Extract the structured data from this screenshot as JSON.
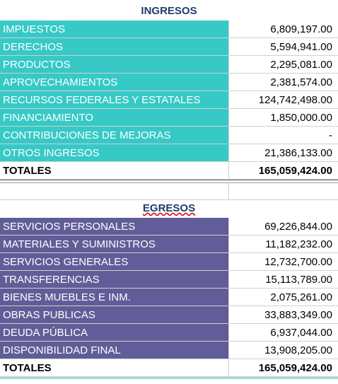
{
  "sections": [
    {
      "title": "INGRESOS",
      "rows": [
        [
          "IMPUESTOS",
          "6,809,197.00"
        ],
        [
          "DERECHOS",
          "5,594,941.00"
        ],
        [
          "PRODUCTOS",
          "2,295,081.00"
        ],
        [
          "APROVECHAMIENTOS",
          "2,381,574.00"
        ],
        [
          "RECURSOS FEDERALES Y ESTATALES",
          "124,742,498.00"
        ],
        [
          "FINANCIAMIENTO",
          "1,850,000.00"
        ],
        [
          "CONTRIBUCIONES DE MEJORAS",
          "-"
        ],
        [
          "OTROS INGRESOS",
          "21,386,133.00"
        ]
      ],
      "total": [
        "TOTALES",
        "165,059,424.00"
      ]
    },
    {
      "title": "EGRESOS",
      "rows": [
        [
          "SERVICIOS PERSONALES",
          "69,226,844.00"
        ],
        [
          "MATERIALES Y SUMINISTROS",
          "11,182,232.00"
        ],
        [
          "SERVICIOS GENERALES",
          "12,732,700.00"
        ],
        [
          "TRANSFERENCIAS",
          "15,113,789.00"
        ],
        [
          "BIENES MUEBLES E INM.",
          "2,075,261.00"
        ],
        [
          "OBRAS PUBLICAS",
          "33,883,349.00"
        ],
        [
          "DEUDA PÚBLICA",
          "6,937,044.00"
        ],
        [
          "DISPONIBILIDAD FINAL",
          "13,908,205.00"
        ]
      ],
      "total": [
        "TOTALES",
        "165,059,424.00"
      ]
    }
  ]
}
